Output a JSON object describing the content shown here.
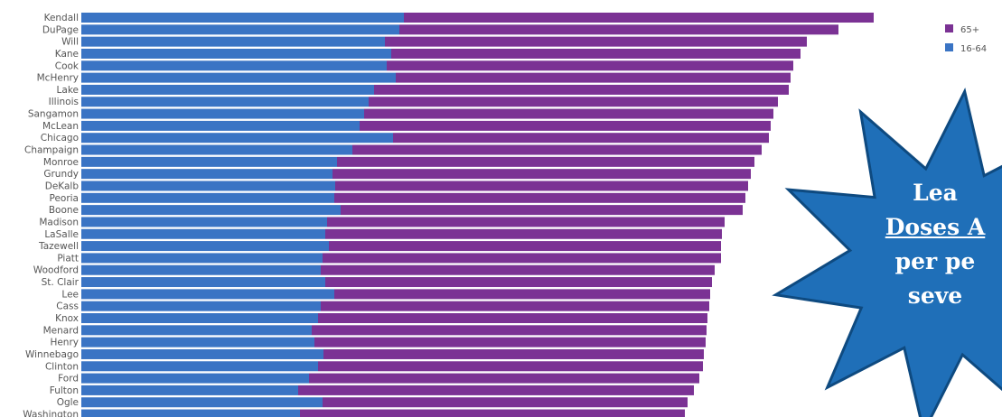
{
  "colors": {
    "series_65": "#7b3294",
    "series_16_64": "#3a74c4",
    "badge_fill": "#1f6fb8",
    "badge_stroke": "#0e4a80"
  },
  "badge": {
    "line1": "Lea",
    "line2": "Doses A",
    "line3": "per pe",
    "line4": "seve"
  },
  "chart_data": {
    "type": "bar",
    "orientation": "horizontal",
    "stacked": true,
    "categories": [
      "Kendall",
      "DuPage",
      "Will",
      "Kane",
      "Cook",
      "McHenry",
      "Lake",
      "Illinois",
      "Sangamon",
      "McLean",
      "Chicago",
      "Champaign",
      "Monroe",
      "Grundy",
      "DeKalb",
      "Peoria",
      "Boone",
      "Madison",
      "LaSalle",
      "Tazewell",
      "Piatt",
      "Woodford",
      "St. Clair",
      "Lee",
      "Cass",
      "Knox",
      "Menard",
      "Henry",
      "Winnebago",
      "Clinton",
      "Ford",
      "Fulton",
      "Ogle",
      "Washington"
    ],
    "series": [
      {
        "name": "16-64",
        "values": [
          357,
          352,
          336,
          343,
          338,
          348,
          324,
          318,
          313,
          308,
          345,
          300,
          283,
          278,
          281,
          280,
          287,
          272,
          270,
          274,
          267,
          265,
          270,
          280,
          265,
          262,
          255,
          258,
          268,
          262,
          252,
          240,
          267,
          242
        ]
      },
      {
        "name": "65+",
        "values": [
          520,
          486,
          467,
          453,
          450,
          437,
          459,
          453,
          453,
          455,
          416,
          453,
          462,
          463,
          457,
          455,
          445,
          440,
          439,
          434,
          441,
          436,
          428,
          416,
          430,
          431,
          437,
          433,
          421,
          426,
          432,
          438,
          404,
          426
        ]
      }
    ],
    "legend": {
      "position": "top-right",
      "entries": [
        "65+",
        "16-64"
      ]
    },
    "grid": false
  }
}
